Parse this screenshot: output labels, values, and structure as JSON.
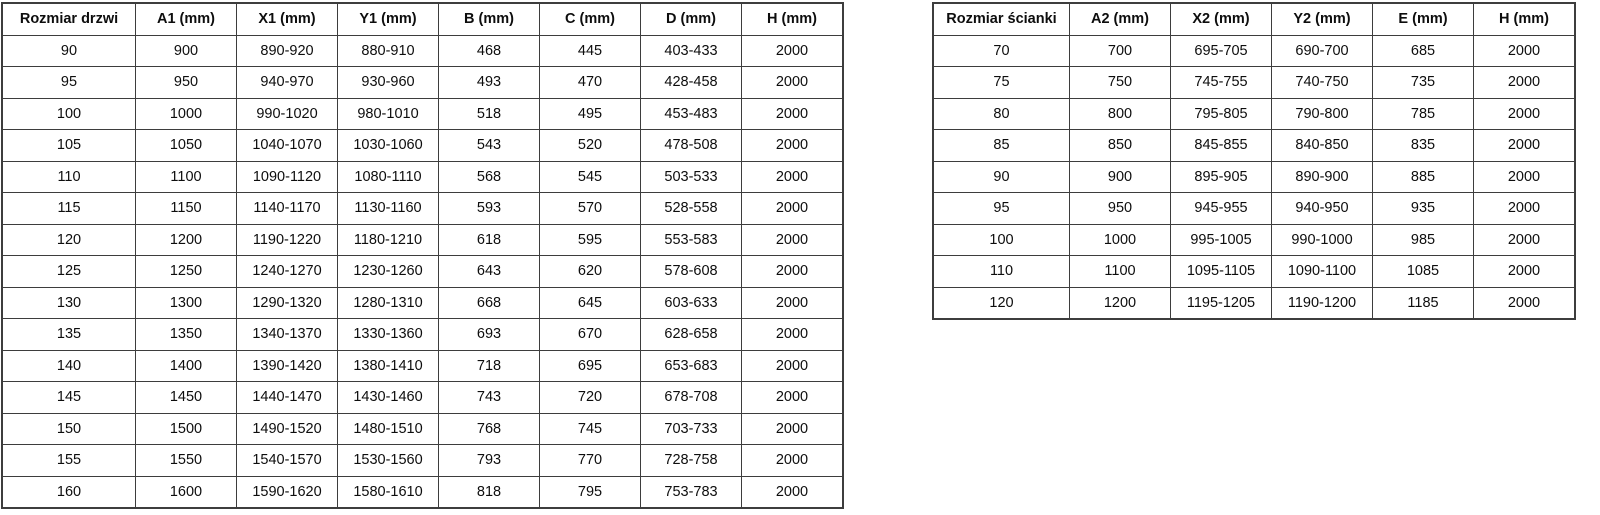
{
  "colors": {
    "background": "#ffffff",
    "border": "#3d3d3d",
    "text": "#0d0d0d"
  },
  "door_table": {
    "headers": [
      "Rozmiar drzwi",
      "A1 (mm)",
      "X1 (mm)",
      "Y1 (mm)",
      "B (mm)",
      "C (mm)",
      "D (mm)",
      "H (mm)"
    ],
    "rows": [
      [
        "90",
        "900",
        "890-920",
        "880-910",
        "468",
        "445",
        "403-433",
        "2000"
      ],
      [
        "95",
        "950",
        "940-970",
        "930-960",
        "493",
        "470",
        "428-458",
        "2000"
      ],
      [
        "100",
        "1000",
        "990-1020",
        "980-1010",
        "518",
        "495",
        "453-483",
        "2000"
      ],
      [
        "105",
        "1050",
        "1040-1070",
        "1030-1060",
        "543",
        "520",
        "478-508",
        "2000"
      ],
      [
        "110",
        "1100",
        "1090-1120",
        "1080-1110",
        "568",
        "545",
        "503-533",
        "2000"
      ],
      [
        "115",
        "1150",
        "1140-1170",
        "1130-1160",
        "593",
        "570",
        "528-558",
        "2000"
      ],
      [
        "120",
        "1200",
        "1190-1220",
        "1180-1210",
        "618",
        "595",
        "553-583",
        "2000"
      ],
      [
        "125",
        "1250",
        "1240-1270",
        "1230-1260",
        "643",
        "620",
        "578-608",
        "2000"
      ],
      [
        "130",
        "1300",
        "1290-1320",
        "1280-1310",
        "668",
        "645",
        "603-633",
        "2000"
      ],
      [
        "135",
        "1350",
        "1340-1370",
        "1330-1360",
        "693",
        "670",
        "628-658",
        "2000"
      ],
      [
        "140",
        "1400",
        "1390-1420",
        "1380-1410",
        "718",
        "695",
        "653-683",
        "2000"
      ],
      [
        "145",
        "1450",
        "1440-1470",
        "1430-1460",
        "743",
        "720",
        "678-708",
        "2000"
      ],
      [
        "150",
        "1500",
        "1490-1520",
        "1480-1510",
        "768",
        "745",
        "703-733",
        "2000"
      ],
      [
        "155",
        "1550",
        "1540-1570",
        "1530-1560",
        "793",
        "770",
        "728-758",
        "2000"
      ],
      [
        "160",
        "1600",
        "1590-1620",
        "1580-1610",
        "818",
        "795",
        "753-783",
        "2000"
      ]
    ]
  },
  "wall_table": {
    "headers": [
      "Rozmiar ścianki",
      "A2 (mm)",
      "X2 (mm)",
      "Y2 (mm)",
      "E (mm)",
      "H (mm)"
    ],
    "rows": [
      [
        "70",
        "700",
        "695-705",
        "690-700",
        "685",
        "2000"
      ],
      [
        "75",
        "750",
        "745-755",
        "740-750",
        "735",
        "2000"
      ],
      [
        "80",
        "800",
        "795-805",
        "790-800",
        "785",
        "2000"
      ],
      [
        "85",
        "850",
        "845-855",
        "840-850",
        "835",
        "2000"
      ],
      [
        "90",
        "900",
        "895-905",
        "890-900",
        "885",
        "2000"
      ],
      [
        "95",
        "950",
        "945-955",
        "940-950",
        "935",
        "2000"
      ],
      [
        "100",
        "1000",
        "995-1005",
        "990-1000",
        "985",
        "2000"
      ],
      [
        "110",
        "1100",
        "1095-1105",
        "1090-1100",
        "1085",
        "2000"
      ],
      [
        "120",
        "1200",
        "1195-1205",
        "1190-1200",
        "1185",
        "2000"
      ]
    ]
  }
}
